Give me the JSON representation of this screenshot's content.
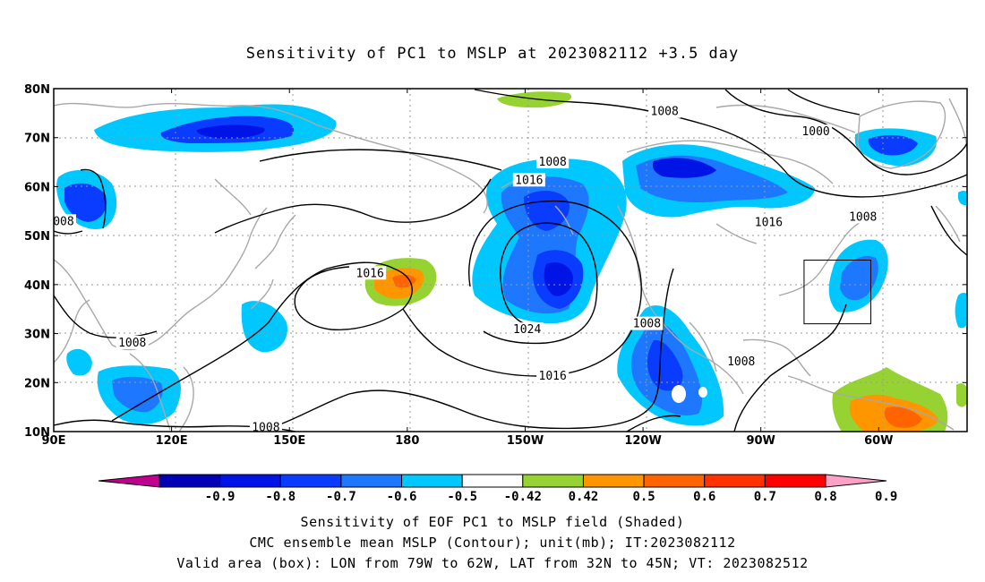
{
  "title": "Sensitivity of PC1 to MSLP at 2023082112 +3.5 day",
  "lat_labels": [
    "80N",
    "70N",
    "60N",
    "50N",
    "40N",
    "30N",
    "20N",
    "10N"
  ],
  "lon_labels": [
    "90E",
    "120E",
    "150E",
    "180",
    "150W",
    "120W",
    "90W",
    "60W"
  ],
  "contour_labels": [
    {
      "text": "1008",
      "lon": 245.5,
      "lat": 75.3
    },
    {
      "text": "1000",
      "lon": 284,
      "lat": 71.2
    },
    {
      "text": "1008",
      "lon": 217,
      "lat": 65
    },
    {
      "text": "1016",
      "lon": 211,
      "lat": 61.3
    },
    {
      "text": "1016",
      "lon": 272,
      "lat": 52.7
    },
    {
      "text": "1008",
      "lon": 296,
      "lat": 53.8
    },
    {
      "text": "008",
      "lon": 92.5,
      "lat": 52.9
    },
    {
      "text": "1016",
      "lon": 170.5,
      "lat": 42.3
    },
    {
      "text": "1024",
      "lon": 210.5,
      "lat": 30.8
    },
    {
      "text": "1008",
      "lon": 241,
      "lat": 32
    },
    {
      "text": "1008",
      "lon": 110,
      "lat": 28.1
    },
    {
      "text": "1016",
      "lon": 217,
      "lat": 21.3
    },
    {
      "text": "1008",
      "lon": 265,
      "lat": 24.3
    },
    {
      "text": "1008",
      "lon": 144,
      "lat": 10.8
    }
  ],
  "colorbar": {
    "labels": [
      "-0.9",
      "-0.8",
      "-0.7",
      "-0.6",
      "-0.5",
      "-0.42",
      "0.42",
      "0.5",
      "0.6",
      "0.7",
      "0.8",
      "0.9"
    ],
    "colors": [
      "#c0008f",
      "#0000b4",
      "#0014e6",
      "#0a3cff",
      "#1e78ff",
      "#00c8ff",
      "#ffffff",
      "#96d232",
      "#ff9600",
      "#ff6400",
      "#ff3200",
      "#ff0000",
      "#ffa0c8"
    ]
  },
  "valid_box": {
    "lon_from": 281,
    "lon_to": 298,
    "lat_from": 32,
    "lat_to": 45
  },
  "captions": {
    "line1": "Sensitivity of EOF PC1 to MSLP field (Shaded)",
    "line2": "CMC ensemble mean MSLP (Contour); unit(mb); IT:2023082112",
    "line3": "Valid area (box): LON from 79W to 62W, LAT from 32N to 45N; VT: 2023082512"
  }
}
